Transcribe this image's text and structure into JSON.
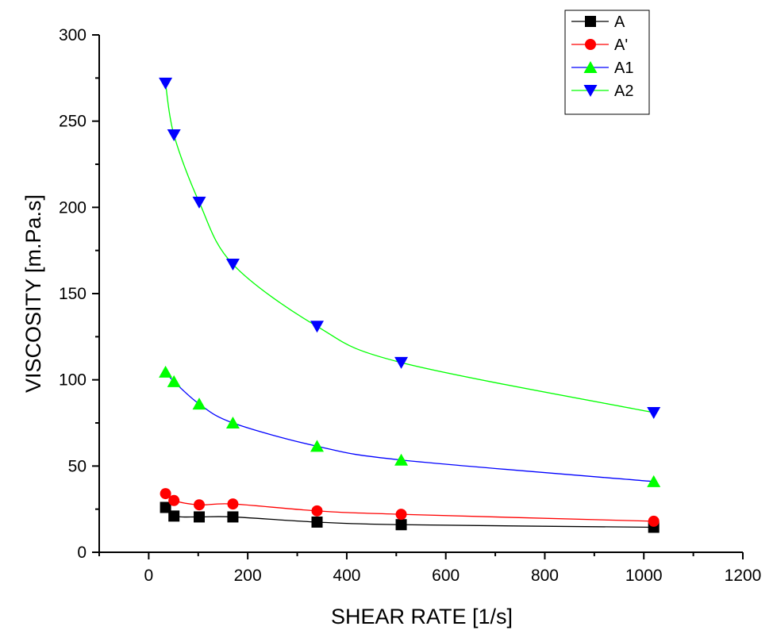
{
  "chart_data": {
    "type": "line",
    "xlabel": "SHEAR RATE [1/s]",
    "ylabel": "VISCOSITY [m.Pa.s]",
    "xlim": [
      -100,
      1200
    ],
    "ylim": [
      0,
      300
    ],
    "xticks": [
      0,
      200,
      400,
      600,
      800,
      1000,
      1200
    ],
    "yticks": [
      0,
      50,
      100,
      150,
      200,
      250,
      300
    ],
    "grid": false,
    "legend_position": "top-right",
    "x": [
      34,
      51,
      102,
      170,
      340,
      510,
      1020
    ],
    "series": [
      {
        "name": "A",
        "marker": "square",
        "color": "#000000",
        "line_color": "#000000",
        "values": [
          26,
          21,
          20.5,
          20.5,
          17.5,
          16,
          14.5
        ]
      },
      {
        "name": "A'",
        "marker": "circle",
        "color": "#ff0000",
        "line_color": "#ff0000",
        "values": [
          34,
          30,
          27.5,
          28,
          24,
          22,
          18
        ]
      },
      {
        "name": "A1",
        "marker": "triangle-up",
        "color": "#00ff00",
        "line_color": "#0000ff",
        "values": [
          104.5,
          99,
          86,
          75,
          61.5,
          53.5,
          41
        ]
      },
      {
        "name": "A2",
        "marker": "triangle-down",
        "color": "#0000ff",
        "line_color": "#00ff00",
        "values": [
          272,
          242,
          203,
          167,
          131,
          110,
          81
        ]
      }
    ]
  }
}
